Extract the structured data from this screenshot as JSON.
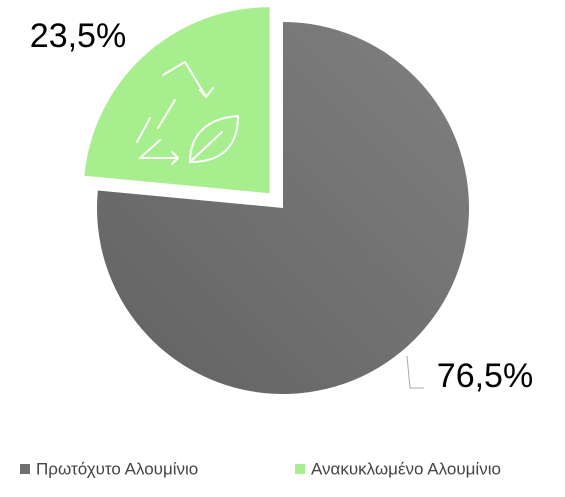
{
  "chart_data": {
    "type": "pie",
    "categories": [
      "Πρωτόχυτο Αλουμίνιο",
      "Ανακυκλωμένο Αλουμίνιο"
    ],
    "values": [
      76.5,
      23.5
    ],
    "value_labels": [
      "76,5%",
      "23,5%"
    ],
    "colors": [
      "#6f6f6f",
      "#a6ee8e"
    ],
    "legend": "bottom"
  }
}
